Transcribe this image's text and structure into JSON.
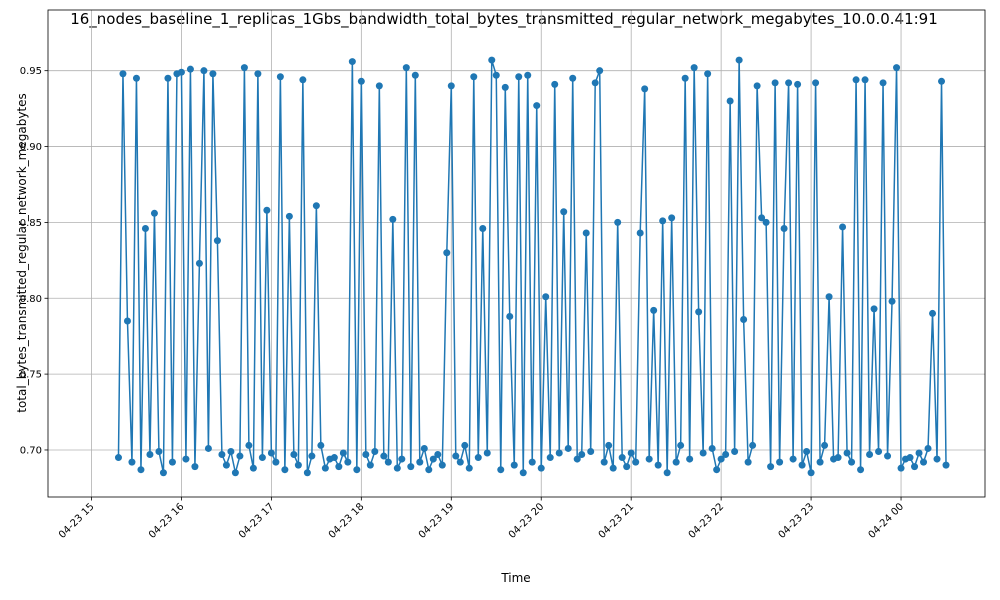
{
  "chart_data": {
    "type": "line",
    "title": "16_nodes_baseline_1_replicas_1Gbs_bandwidth_total_bytes_transmitted_regular_network_megabytes_10.0.0.41:91",
    "x_label": "Time",
    "y_label": "total_bytes_transmitted_regular_network_megabytes",
    "color": "#1f77b4",
    "grid": true,
    "markers": true,
    "xlim": [
      "04-23 14:31",
      "04-24 00:56"
    ],
    "xticks": [
      {
        "value": "04-23 15:00",
        "label": "04-23 15"
      },
      {
        "value": "04-23 16:00",
        "label": "04-23 16"
      },
      {
        "value": "04-23 17:00",
        "label": "04-23 17"
      },
      {
        "value": "04-23 18:00",
        "label": "04-23 18"
      },
      {
        "value": "04-23 19:00",
        "label": "04-23 19"
      },
      {
        "value": "04-23 20:00",
        "label": "04-23 20"
      },
      {
        "value": "04-23 21:00",
        "label": "04-23 21"
      },
      {
        "value": "04-23 22:00",
        "label": "04-23 22"
      },
      {
        "value": "04-23 23:00",
        "label": "04-23 23"
      },
      {
        "value": "04-24 00:00",
        "label": "04-24 00"
      }
    ],
    "ylim": [
      0.669,
      0.99
    ],
    "yticks": [
      {
        "value": 0.7,
        "label": "0.70"
      },
      0.75,
      {
        "value": 0.8,
        "label": "0.80"
      },
      0.85,
      {
        "value": 0.9,
        "label": "0.90"
      },
      0.95
    ],
    "x": [
      "04-23 15:18",
      "04-23 15:21",
      "04-23 15:24",
      "04-23 15:27",
      "04-23 15:30",
      "04-23 15:33",
      "04-23 15:36",
      "04-23 15:39",
      "04-23 15:42",
      "04-23 15:45",
      "04-23 15:48",
      "04-23 15:51",
      "04-23 15:54",
      "04-23 15:57",
      "04-23 16:00",
      "04-23 16:03",
      "04-23 16:06",
      "04-23 16:09",
      "04-23 16:12",
      "04-23 16:15",
      "04-23 16:18",
      "04-23 16:21",
      "04-23 16:24",
      "04-23 16:27",
      "04-23 16:30",
      "04-23 16:33",
      "04-23 16:36",
      "04-23 16:39",
      "04-23 16:42",
      "04-23 16:45",
      "04-23 16:48",
      "04-23 16:51",
      "04-23 16:54",
      "04-23 16:57",
      "04-23 17:00",
      "04-23 17:03",
      "04-23 17:06",
      "04-23 17:09",
      "04-23 17:12",
      "04-23 17:15",
      "04-23 17:18",
      "04-23 17:21",
      "04-23 17:24",
      "04-23 17:27",
      "04-23 17:30",
      "04-23 17:33",
      "04-23 17:36",
      "04-23 17:39",
      "04-23 17:42",
      "04-23 17:45",
      "04-23 17:48",
      "04-23 17:51",
      "04-23 17:54",
      "04-23 17:57",
      "04-23 18:00",
      "04-23 18:03",
      "04-23 18:06",
      "04-23 18:09",
      "04-23 18:12",
      "04-23 18:15",
      "04-23 18:18",
      "04-23 18:21",
      "04-23 18:24",
      "04-23 18:27",
      "04-23 18:30",
      "04-23 18:33",
      "04-23 18:36",
      "04-23 18:39",
      "04-23 18:42",
      "04-23 18:45",
      "04-23 18:48",
      "04-23 18:51",
      "04-23 18:54",
      "04-23 18:57",
      "04-23 19:00",
      "04-23 19:03",
      "04-23 19:06",
      "04-23 19:09",
      "04-23 19:12",
      "04-23 19:15",
      "04-23 19:18",
      "04-23 19:21",
      "04-23 19:24",
      "04-23 19:27",
      "04-23 19:30",
      "04-23 19:33",
      "04-23 19:36",
      "04-23 19:39",
      "04-23 19:42",
      "04-23 19:45",
      "04-23 19:48",
      "04-23 19:51",
      "04-23 19:54",
      "04-23 19:57",
      "04-23 20:00",
      "04-23 20:03",
      "04-23 20:06",
      "04-23 20:09",
      "04-23 20:12",
      "04-23 20:15",
      "04-23 20:18",
      "04-23 20:21",
      "04-23 20:24",
      "04-23 20:27",
      "04-23 20:30",
      "04-23 20:33",
      "04-23 20:36",
      "04-23 20:39",
      "04-23 20:42",
      "04-23 20:45",
      "04-23 20:48",
      "04-23 20:51",
      "04-23 20:54",
      "04-23 20:57",
      "04-23 21:00",
      "04-23 21:03",
      "04-23 21:06",
      "04-23 21:09",
      "04-23 21:12",
      "04-23 21:15",
      "04-23 21:18",
      "04-23 21:21",
      "04-23 21:24",
      "04-23 21:27",
      "04-23 21:30",
      "04-23 21:33",
      "04-23 21:36",
      "04-23 21:39",
      "04-23 21:42",
      "04-23 21:45",
      "04-23 21:48",
      "04-23 21:51",
      "04-23 21:54",
      "04-23 21:57",
      "04-23 22:00",
      "04-23 22:03",
      "04-23 22:06",
      "04-23 22:09",
      "04-23 22:12",
      "04-23 22:15",
      "04-23 22:18",
      "04-23 22:21",
      "04-23 22:24",
      "04-23 22:27",
      "04-23 22:30",
      "04-23 22:33",
      "04-23 22:36",
      "04-23 22:39",
      "04-23 22:42",
      "04-23 22:45",
      "04-23 22:48",
      "04-23 22:51",
      "04-23 22:54",
      "04-23 22:57",
      "04-23 23:00",
      "04-23 23:03",
      "04-23 23:06",
      "04-23 23:09",
      "04-23 23:12",
      "04-23 23:15",
      "04-23 23:18",
      "04-23 23:21",
      "04-23 23:24",
      "04-23 23:27",
      "04-23 23:30",
      "04-23 23:33",
      "04-23 23:36",
      "04-23 23:39",
      "04-23 23:42",
      "04-23 23:45",
      "04-23 23:48",
      "04-23 23:51",
      "04-23 23:54",
      "04-23 23:57",
      "04-24 00:00",
      "04-24 00:03",
      "04-24 00:06",
      "04-24 00:09",
      "04-24 00:12",
      "04-24 00:15",
      "04-24 00:18",
      "04-24 00:21",
      "04-24 00:24",
      "04-24 00:27",
      "04-24 00:30"
    ],
    "values": [
      0.695,
      0.948,
      0.785,
      0.692,
      0.945,
      0.687,
      0.846,
      0.697,
      0.856,
      0.699,
      0.685,
      0.945,
      0.692,
      0.948,
      0.949,
      0.694,
      0.951,
      0.689,
      0.823,
      0.95,
      0.701,
      0.948,
      0.838,
      0.697,
      0.69,
      0.699,
      0.685,
      0.696,
      0.952,
      0.703,
      0.688,
      0.948,
      0.695,
      0.858,
      0.698,
      0.692,
      0.946,
      0.687,
      0.854,
      0.697,
      0.69,
      0.944,
      0.685,
      0.696,
      0.861,
      0.703,
      0.688,
      0.694,
      0.695,
      0.689,
      0.698,
      0.692,
      0.956,
      0.687,
      0.943,
      0.697,
      0.69,
      0.699,
      0.94,
      0.696,
      0.692,
      0.852,
      0.688,
      0.694,
      0.952,
      0.689,
      0.947,
      0.692,
      0.701,
      0.687,
      0.694,
      0.697,
      0.69,
      0.83,
      0.94,
      0.696,
      0.692,
      0.703,
      0.688,
      0.946,
      0.695,
      0.846,
      0.698,
      0.957,
      0.947,
      0.687,
      0.939,
      0.788,
      0.69,
      0.946,
      0.685,
      0.947,
      0.692,
      0.927,
      0.688,
      0.801,
      0.695,
      0.941,
      0.698,
      0.857,
      0.701,
      0.945,
      0.694,
      0.697,
      0.843,
      0.699,
      0.942,
      0.95,
      0.692,
      0.703,
      0.688,
      0.85,
      0.695,
      0.689,
      0.698,
      0.692,
      0.843,
      0.938,
      0.694,
      0.792,
      0.69,
      0.851,
      0.685,
      0.853,
      0.692,
      0.703,
      0.945,
      0.694,
      0.952,
      0.791,
      0.698,
      0.948,
      0.701,
      0.687,
      0.694,
      0.697,
      0.93,
      0.699,
      0.957,
      0.786,
      0.692,
      0.703,
      0.94,
      0.853,
      0.85,
      0.689,
      0.942,
      0.692,
      0.846,
      0.942,
      0.694,
      0.941,
      0.69,
      0.699,
      0.685,
      0.942,
      0.692,
      0.703,
      0.801,
      0.694,
      0.695,
      0.847,
      0.698,
      0.692,
      0.944,
      0.687,
      0.944,
      0.697,
      0.793,
      0.699,
      0.942,
      0.696,
      0.798,
      0.952,
      0.688,
      0.694,
      0.695,
      0.689,
      0.698,
      0.692,
      0.701,
      0.79,
      0.694,
      0.943,
      0.69
    ]
  }
}
